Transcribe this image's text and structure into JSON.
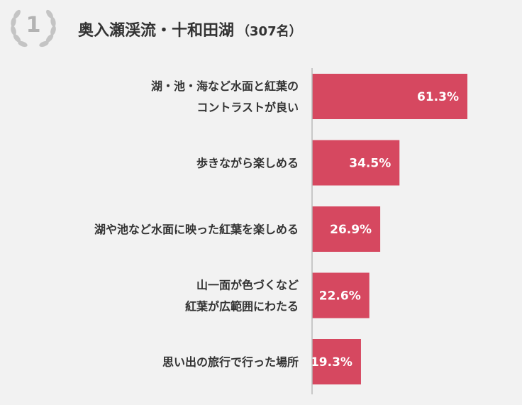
{
  "header": {
    "rank": "1",
    "title": "奥入瀬渓流・十和田湖",
    "count": "（307名）"
  },
  "colors": {
    "bar": "#d64860",
    "axis": "#b9b9b9",
    "badge": "#b3b3b3"
  },
  "chart_data": {
    "type": "bar",
    "orientation": "horizontal",
    "categories": [
      [
        "湖・池・海など水面と紅葉の",
        "コントラストが良い"
      ],
      [
        "歩きながら楽しめる"
      ],
      [
        "湖や池など水面に映った紅葉を楽しめる"
      ],
      [
        "山一面が色づくなど",
        "紅葉が広範囲にわたる"
      ],
      [
        "思い出の旅行で行った場所"
      ]
    ],
    "values": [
      61.3,
      34.5,
      26.9,
      22.6,
      19.3
    ],
    "value_labels": [
      "61.3%",
      "34.5%",
      "26.9%",
      "22.6%",
      "19.3%"
    ],
    "xlim": [
      0,
      61.3
    ],
    "grid": false,
    "legend": "none"
  }
}
